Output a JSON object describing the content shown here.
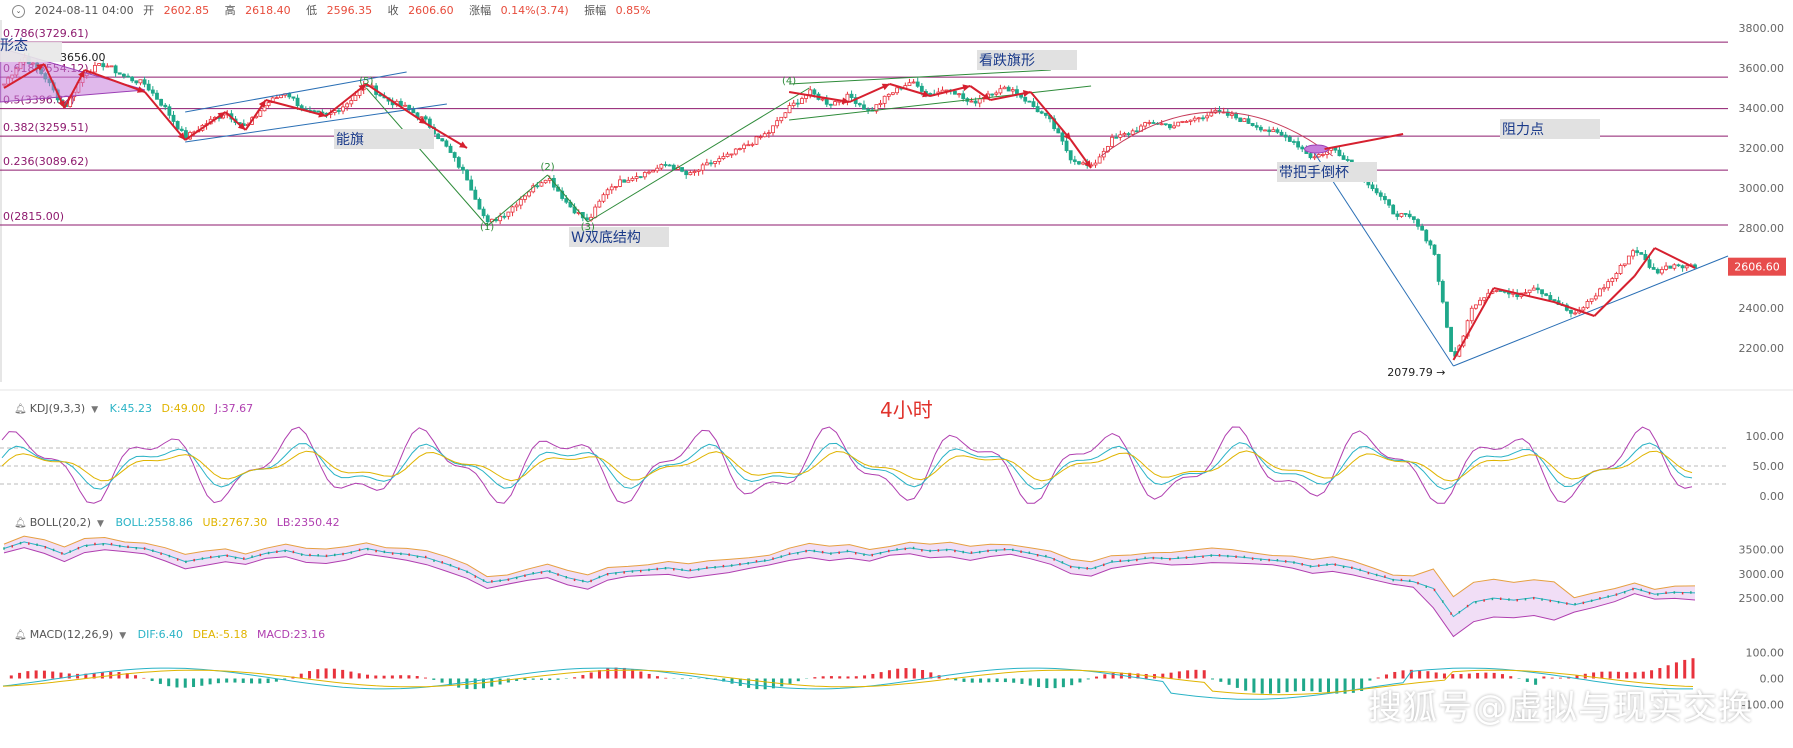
{
  "header": {
    "datetime": "2024-08-11 04:00",
    "open_label": "开",
    "open": "2602.85",
    "high_label": "高",
    "high": "2618.40",
    "low_label": "低",
    "low": "2596.35",
    "close_label": "收",
    "close": "2606.60",
    "change_label": "涨幅",
    "change": "0.14%(3.74)",
    "amplitude_label": "振幅",
    "amplitude": "0.85%"
  },
  "timeframe": "4小时",
  "watermark": "搜狐号@虚拟与现实交换",
  "colors": {
    "up": "#e8323c",
    "down": "#1fa88a",
    "fib": "#8e1a6e",
    "arrow": "#d6202f",
    "trend_green": "#2e8b3a",
    "trend_blue": "#2a6fb5",
    "price_tag": "#e74c4c"
  },
  "chart_data": [
    {
      "type": "candlestick",
      "panel": "main",
      "y_axis_ticks": [
        2200,
        2400,
        2600,
        2800,
        3000,
        3200,
        3400,
        3600,
        3800
      ],
      "y_axis_labels": [
        "2200.00",
        "2400.00",
        "2600.00",
        "2800.00",
        "3000.00",
        "3200.00",
        "3400.00",
        "3600.00",
        "3800.00"
      ],
      "ylim": [
        2040,
        3840
      ],
      "last_price": "2606.60",
      "fib_levels": [
        {
          "label": "0.786(3729.61)",
          "value": 3729.61
        },
        {
          "label": "0.618(3554.12)",
          "value": 3554.12
        },
        {
          "label": "0.5(3396.82)",
          "value": 3396.82
        },
        {
          "label": "0.382(3259.51)",
          "value": 3259.51
        },
        {
          "label": "0.236(3089.62)",
          "value": 3089.62
        },
        {
          "label": "0(2815.00)",
          "value": 2815.0
        }
      ],
      "price_path": [
        3520,
        3656,
        3560,
        3400,
        3580,
        3620,
        3555,
        3520,
        3400,
        3250,
        3320,
        3380,
        3300,
        3420,
        3480,
        3380,
        3360,
        3420,
        3520,
        3440,
        3400,
        3330,
        3200,
        3050,
        2820,
        2880,
        2980,
        3060,
        2920,
        2830,
        3000,
        3050,
        3080,
        3120,
        3060,
        3120,
        3160,
        3220,
        3280,
        3400,
        3480,
        3420,
        3460,
        3380,
        3470,
        3530,
        3470,
        3500,
        3420,
        3480,
        3500,
        3420,
        3330,
        3150,
        3100,
        3240,
        3280,
        3330,
        3310,
        3340,
        3380,
        3360,
        3320,
        3280,
        3240,
        3150,
        3200,
        3120,
        3000,
        2880,
        2840,
        2700,
        2120,
        2420,
        2500,
        2460,
        2510,
        2440,
        2360,
        2460,
        2560,
        2700,
        2580,
        2620,
        2606.6
      ],
      "annotations": [
        {
          "text": "形态",
          "price": 3715
        },
        {
          "text": "3656.00",
          "price": 3656
        },
        {
          "text": "能旗",
          "price": 3245
        },
        {
          "text": "W双底结构",
          "price": 2755
        },
        {
          "text": "看跌旗形",
          "price": 3640
        },
        {
          "text": "带把手倒杯",
          "price": 3080
        },
        {
          "text": "阻力点",
          "price": 3295
        },
        {
          "text": "2079.79",
          "price": 2079.79
        }
      ],
      "wave_labels": [
        "(1)",
        "(2)",
        "(3)",
        "(4)",
        "(5)"
      ]
    },
    {
      "type": "line",
      "panel": "KDJ",
      "title": "KDJ(9,3,3)",
      "series": [
        {
          "name": "K",
          "label": "K:45.23",
          "color": "#2ab3c6"
        },
        {
          "name": "D",
          "label": "D:49.00",
          "color": "#e0b400"
        },
        {
          "name": "J",
          "label": "J:37.67",
          "color": "#b03fb0"
        }
      ],
      "y_axis_labels": [
        "100.00",
        "50.00",
        "0.00"
      ],
      "ylim": [
        -15,
        120
      ]
    },
    {
      "type": "line",
      "panel": "BOLL",
      "title": "BOLL(20,2)",
      "series": [
        {
          "name": "BOLL",
          "label": "BOLL:2558.86",
          "color": "#2ab3c6"
        },
        {
          "name": "UB",
          "label": "UB:2767.30",
          "color": "#e0b400"
        },
        {
          "name": "LB",
          "label": "LB:2350.42",
          "color": "#b03fb0"
        }
      ],
      "y_axis_labels": [
        "3500.00",
        "3000.00",
        "2500.00"
      ],
      "ylim": [
        2050,
        3900
      ]
    },
    {
      "type": "bar",
      "panel": "MACD",
      "title": "MACD(12,26,9)",
      "series": [
        {
          "name": "DIF",
          "label": "DIF:6.40",
          "color": "#2ab3c6"
        },
        {
          "name": "DEA",
          "label": "DEA:-5.18",
          "color": "#e0b400"
        },
        {
          "name": "MACD",
          "label": "MACD:23.16",
          "color": "#b03fb0"
        }
      ],
      "y_axis_labels": [
        "100.00",
        "0.00",
        "-100.00"
      ],
      "ylim": [
        -140,
        140
      ]
    }
  ]
}
